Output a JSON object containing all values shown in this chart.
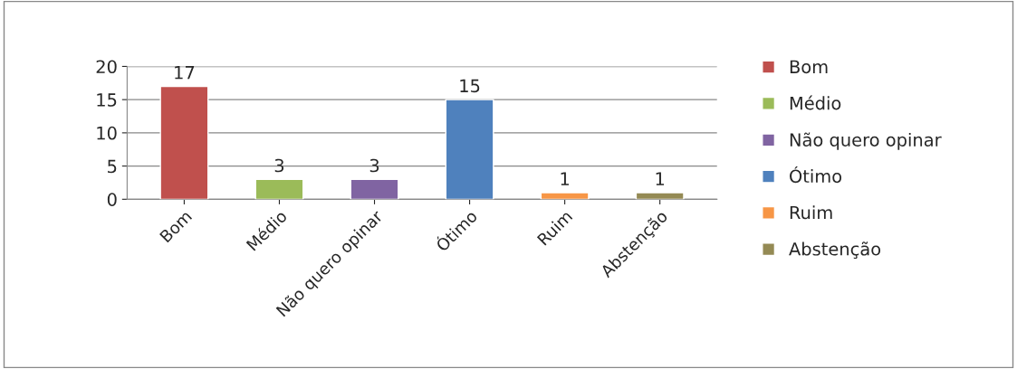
{
  "chart_data": {
    "type": "bar",
    "categories": [
      "Bom",
      "Médio",
      "Não quero opinar",
      "Ótimo",
      "Ruim",
      "Abstenção"
    ],
    "series": [
      {
        "name": "Bom",
        "color": "#c0504d",
        "values": [
          17,
          null,
          null,
          null,
          null,
          null
        ]
      },
      {
        "name": "Médio",
        "color": "#9bbb59",
        "values": [
          null,
          3,
          null,
          null,
          null,
          null
        ]
      },
      {
        "name": "Não quero opinar",
        "color": "#8064a2",
        "values": [
          null,
          null,
          3,
          null,
          null,
          null
        ]
      },
      {
        "name": "Ótimo",
        "color": "#4f81bd",
        "values": [
          null,
          null,
          null,
          15,
          null,
          null
        ]
      },
      {
        "name": "Ruim",
        "color": "#f79646",
        "values": [
          null,
          null,
          null,
          null,
          1,
          null
        ]
      },
      {
        "name": "Abstenção",
        "color": "#948a54",
        "values": [
          null,
          null,
          null,
          null,
          null,
          1
        ]
      }
    ],
    "ylim": [
      0,
      20
    ],
    "yticks": [
      0,
      5,
      10,
      15,
      20
    ],
    "grid": "y",
    "legend": "right",
    "data_labels": true
  }
}
